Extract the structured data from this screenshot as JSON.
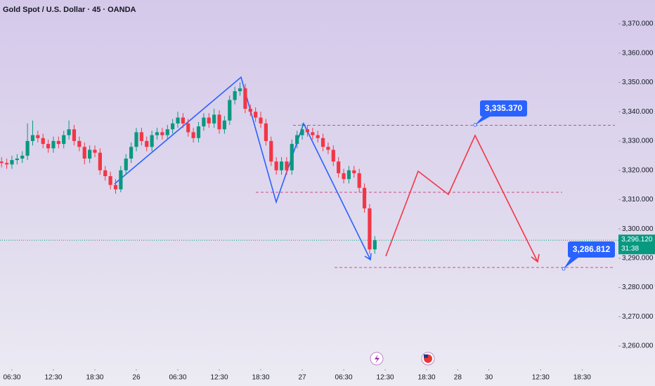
{
  "chart_data": {
    "type": "candlestick",
    "title": "Gold Spot / U.S. Dollar · 45 · OANDA",
    "open": [
      3323,
      3322.5,
      3322,
      3323.5,
      3324,
      3325,
      3330,
      3332,
      3331,
      3329,
      3327.5,
      3330,
      3329,
      3332,
      3334,
      3330,
      3328,
      3324,
      3327,
      3326,
      3320,
      3318,
      3315,
      3313.5,
      3320,
      3324,
      3328,
      3333,
      3330,
      3328,
      3332,
      3333,
      3332,
      3334,
      3336,
      3338,
      3336,
      3333,
      3331,
      3335,
      3338,
      3336,
      3339,
      3334,
      3337,
      3344,
      3347,
      3348,
      3341,
      3340,
      3338,
      3336,
      3330,
      3323,
      3320,
      3323,
      3320,
      3329,
      3332,
      3334,
      3333,
      3332,
      3331,
      3328,
      3327,
      3323,
      3319,
      3317,
      3320,
      3319,
      3314,
      3307,
      3293
    ],
    "high": [
      3324.5,
      3324,
      3325,
      3325.5,
      3326.5,
      3336,
      3337,
      3333.5,
      3332.5,
      3330.5,
      3331.5,
      3331.5,
      3333.5,
      3337,
      3335.5,
      3331.5,
      3329.5,
      3328.5,
      3328.5,
      3327.5,
      3321.5,
      3319.5,
      3317,
      3321.5,
      3325.5,
      3329.5,
      3334.5,
      3334.5,
      3331.5,
      3333.5,
      3334.5,
      3334.5,
      3335.5,
      3337.5,
      3340,
      3339.5,
      3337.5,
      3334.5,
      3336.5,
      3339.5,
      3339.5,
      3341,
      3340.5,
      3338.5,
      3345.5,
      3348.5,
      3350,
      3349.5,
      3342.5,
      3341.5,
      3340,
      3337.5,
      3331.5,
      3324.5,
      3324.5,
      3324.5,
      3330.5,
      3333.5,
      3336,
      3335.5,
      3334.5,
      3333.5,
      3332.5,
      3329.5,
      3328.5,
      3324.5,
      3320.5,
      3321.5,
      3321.5,
      3320.5,
      3315.5,
      3308.5,
      3297.5
    ],
    "low": [
      3321,
      3320.5,
      3320.5,
      3322,
      3322.5,
      3323.5,
      3328.5,
      3329.5,
      3327.5,
      3326,
      3326,
      3327.5,
      3327.5,
      3330.5,
      3328.5,
      3326.5,
      3322,
      3322.5,
      3324.5,
      3318.5,
      3316.5,
      3313.5,
      3312,
      3312.5,
      3318.5,
      3322.5,
      3326.5,
      3328.5,
      3326.5,
      3326.5,
      3330.5,
      3330.5,
      3330.5,
      3332.5,
      3334.5,
      3334.5,
      3331.5,
      3329.5,
      3329.5,
      3333.5,
      3334.5,
      3334.5,
      3332.5,
      3332.5,
      3335.5,
      3342.5,
      3345.5,
      3339.5,
      3338.5,
      3336.5,
      3334.5,
      3328.5,
      3321.5,
      3318.5,
      3318.5,
      3318.5,
      3318.5,
      3327.5,
      3330.5,
      3331.5,
      3330.5,
      3329.5,
      3326.5,
      3325.5,
      3321.5,
      3317.5,
      3315.5,
      3315.5,
      3317.5,
      3312.5,
      3305.5,
      3291.5,
      3291.5
    ],
    "close": [
      3322.5,
      3322,
      3323.5,
      3324,
      3325,
      3330,
      3332,
      3331,
      3329,
      3327.5,
      3330,
      3329,
      3332,
      3334,
      3330,
      3328,
      3324,
      3327,
      3326,
      3320,
      3318,
      3315,
      3313.5,
      3320,
      3324,
      3328,
      3333,
      3330,
      3328,
      3332,
      3333,
      3332,
      3334,
      3336,
      3338,
      3336,
      3333,
      3331,
      3335,
      3338,
      3336,
      3339,
      3334,
      3337,
      3344,
      3347,
      3348,
      3341,
      3340,
      3338,
      3336,
      3330,
      3323,
      3320,
      3323,
      3320,
      3329,
      3332,
      3334,
      3333,
      3332,
      3331,
      3328,
      3327,
      3323,
      3319,
      3317,
      3320,
      3319,
      3314,
      3307,
      3293,
      3296.12
    ],
    "up_color": "#089981",
    "down_color": "#f23645",
    "xlim": [
      -0.3,
      119
    ],
    "xticks": [
      {
        "value": 2,
        "label": "06:30"
      },
      {
        "value": 10,
        "label": "12:30"
      },
      {
        "value": 18,
        "label": "18:30"
      },
      {
        "value": 26,
        "label": "26"
      },
      {
        "value": 34,
        "label": "06:30"
      },
      {
        "value": 42,
        "label": "12:30"
      },
      {
        "value": 50,
        "label": "18:30"
      },
      {
        "value": 58,
        "label": "27"
      },
      {
        "value": 66,
        "label": "06:30"
      },
      {
        "value": 74,
        "label": "12:30"
      },
      {
        "value": 82,
        "label": "18:30"
      },
      {
        "value": 88,
        "label": "28"
      },
      {
        "value": 94,
        "label": "30"
      },
      {
        "value": 104,
        "label": "12:30"
      },
      {
        "value": 112,
        "label": "18:30"
      }
    ],
    "ylim": [
      3252.1,
      3378.15
    ],
    "yticks": [
      {
        "value": 3370,
        "label": "3,370.000"
      },
      {
        "value": 3360,
        "label": "3,360.000"
      },
      {
        "value": 3350,
        "label": "3,350.000"
      },
      {
        "value": 3340,
        "label": "3,340.000"
      },
      {
        "value": 3330,
        "label": "3,330.000"
      },
      {
        "value": 3320,
        "label": "3,320.000"
      },
      {
        "value": 3310,
        "label": "3,310.000"
      },
      {
        "value": 3300,
        "label": "3,300.000"
      },
      {
        "value": 3290,
        "label": "3,290.000"
      },
      {
        "value": 3280,
        "label": "3,280.000"
      },
      {
        "value": 3270,
        "label": "3,270.000"
      },
      {
        "value": 3260,
        "label": "3,260.000"
      }
    ],
    "grid": false,
    "last_price": {
      "value": 3296.12,
      "label": "3,296.120"
    },
    "countdown": "31:38",
    "annotations": [
      {
        "value": 3335.37,
        "label": "3,335.370"
      },
      {
        "value": 3286.812,
        "label": "3,286.812"
      }
    ]
  }
}
